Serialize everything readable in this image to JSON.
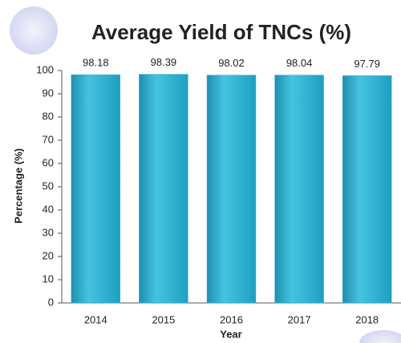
{
  "chart_data": {
    "type": "bar",
    "title": "Average Yield of TNCs (%)",
    "categories": [
      "2014",
      "2015",
      "2016",
      "2017",
      "2018"
    ],
    "values": [
      98.18,
      98.39,
      98.02,
      98.04,
      97.79
    ],
    "color": "#2fb2d2",
    "x_label": "Year",
    "y_label": "Percentage (%)",
    "ylim": [
      0,
      100
    ],
    "yticks": [
      0,
      10,
      20,
      30,
      40,
      50,
      60,
      70,
      80,
      90,
      100
    ],
    "grid": false
  }
}
